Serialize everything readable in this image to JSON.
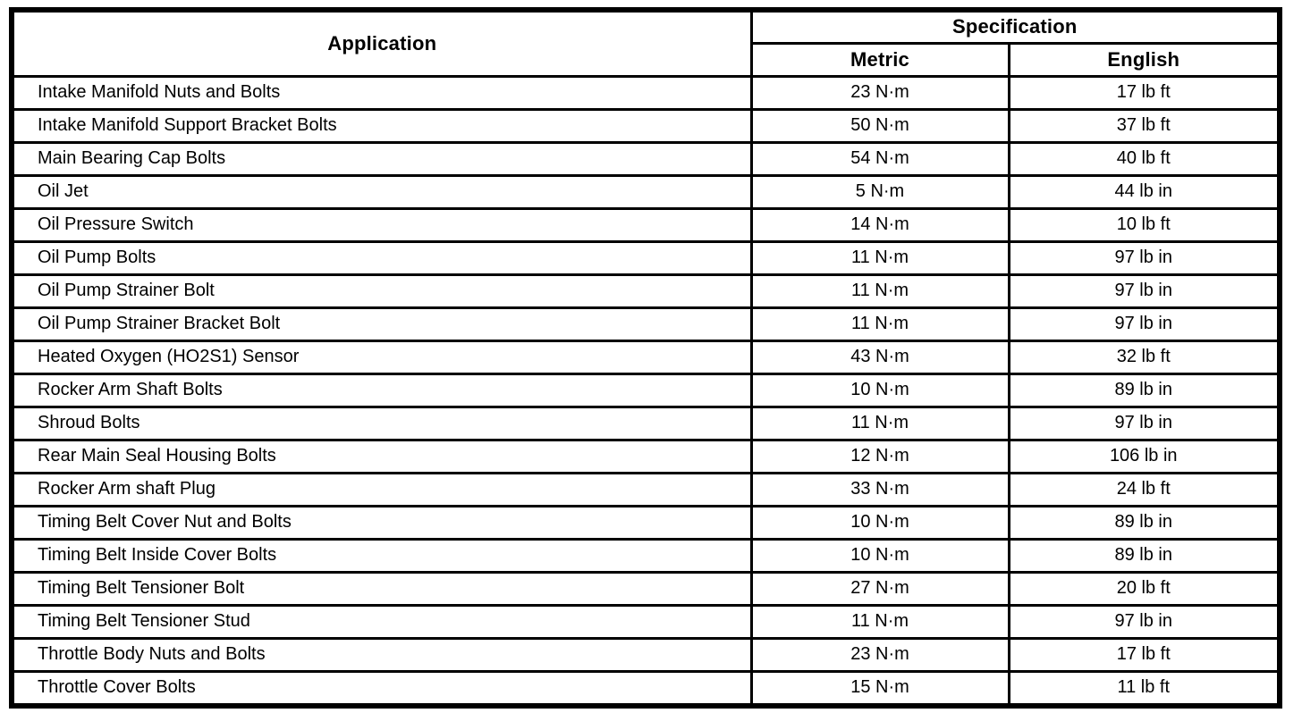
{
  "table": {
    "headers": {
      "application": "Application",
      "specification": "Specification",
      "metric": "Metric",
      "english": "English"
    },
    "rows": [
      {
        "application": "Intake Manifold Nuts and Bolts",
        "metric": "23 N·m",
        "english": "17 lb ft"
      },
      {
        "application": "Intake Manifold Support Bracket Bolts",
        "metric": "50 N·m",
        "english": "37 lb ft"
      },
      {
        "application": "Main Bearing Cap Bolts",
        "metric": "54 N·m",
        "english": "40 lb ft"
      },
      {
        "application": "Oil Jet",
        "metric": "5 N·m",
        "english": "44 lb in"
      },
      {
        "application": "Oil Pressure Switch",
        "metric": "14 N·m",
        "english": "10 lb ft"
      },
      {
        "application": "Oil Pump Bolts",
        "metric": "11 N·m",
        "english": "97 lb in"
      },
      {
        "application": "Oil Pump Strainer Bolt",
        "metric": "11 N·m",
        "english": "97 lb in"
      },
      {
        "application": "Oil Pump Strainer Bracket Bolt",
        "metric": "11 N·m",
        "english": "97 lb in"
      },
      {
        "application": "Heated Oxygen (HO2S1) Sensor",
        "metric": "43 N·m",
        "english": "32 lb ft"
      },
      {
        "application": "Rocker Arm Shaft Bolts",
        "metric": "10 N·m",
        "english": "89 lb in"
      },
      {
        "application": "Shroud Bolts",
        "metric": "11 N·m",
        "english": "97 lb in"
      },
      {
        "application": "Rear Main Seal Housing Bolts",
        "metric": "12 N·m",
        "english": "106 lb in"
      },
      {
        "application": "Rocker Arm shaft Plug",
        "metric": "33 N·m",
        "english": "24 lb ft"
      },
      {
        "application": "Timing Belt Cover Nut and Bolts",
        "metric": "10 N·m",
        "english": "89 lb in"
      },
      {
        "application": "Timing Belt Inside Cover Bolts",
        "metric": "10 N·m",
        "english": "89 lb in"
      },
      {
        "application": "Timing Belt Tensioner Bolt",
        "metric": "27 N·m",
        "english": "20 lb ft"
      },
      {
        "application": "Timing Belt Tensioner Stud",
        "metric": "11 N·m",
        "english": "97 lb in"
      },
      {
        "application": "Throttle Body Nuts and Bolts",
        "metric": "23 N·m",
        "english": "17 lb ft"
      },
      {
        "application": "Throttle Cover Bolts",
        "metric": "15 N·m",
        "english": "11 lb ft"
      }
    ]
  }
}
